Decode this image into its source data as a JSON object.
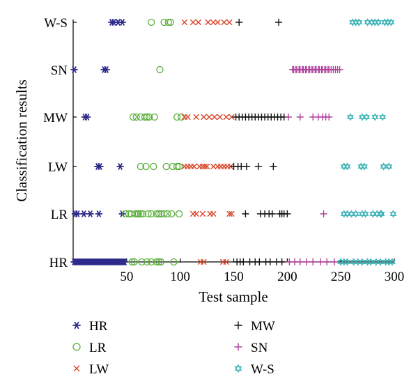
{
  "chart_data": {
    "type": "scatter",
    "xlabel": "Test sample",
    "ylabel": "Classification results",
    "xlim": [
      0,
      300
    ],
    "x_ticks": [
      "50",
      "100",
      "150",
      "200",
      "250",
      "300"
    ],
    "x_tick_values": [
      50,
      100,
      150,
      200,
      250,
      300
    ],
    "categories": [
      "HR",
      "LR",
      "LW",
      "MW",
      "SN",
      "W-S"
    ],
    "legend_position": "bottom",
    "grid": false,
    "series": [
      {
        "name": "HR",
        "color": "#2e2a8c",
        "marker": "asterisk",
        "points": [
          [
            1,
            "HR"
          ],
          [
            2,
            "HR"
          ],
          [
            3,
            "HR"
          ],
          [
            4,
            "HR"
          ],
          [
            5,
            "HR"
          ],
          [
            6,
            "HR"
          ],
          [
            7,
            "HR"
          ],
          [
            8,
            "HR"
          ],
          [
            9,
            "HR"
          ],
          [
            10,
            "HR"
          ],
          [
            11,
            "HR"
          ],
          [
            12,
            "HR"
          ],
          [
            13,
            "HR"
          ],
          [
            14,
            "HR"
          ],
          [
            15,
            "HR"
          ],
          [
            16,
            "HR"
          ],
          [
            17,
            "HR"
          ],
          [
            18,
            "HR"
          ],
          [
            19,
            "HR"
          ],
          [
            20,
            "HR"
          ],
          [
            21,
            "HR"
          ],
          [
            22,
            "HR"
          ],
          [
            23,
            "HR"
          ],
          [
            24,
            "HR"
          ],
          [
            25,
            "HR"
          ],
          [
            26,
            "HR"
          ],
          [
            27,
            "HR"
          ],
          [
            28,
            "HR"
          ],
          [
            29,
            "HR"
          ],
          [
            30,
            "HR"
          ],
          [
            31,
            "HR"
          ],
          [
            32,
            "HR"
          ],
          [
            33,
            "HR"
          ],
          [
            34,
            "HR"
          ],
          [
            35,
            "HR"
          ],
          [
            36,
            "HR"
          ],
          [
            37,
            "HR"
          ],
          [
            38,
            "HR"
          ],
          [
            39,
            "HR"
          ],
          [
            40,
            "HR"
          ],
          [
            41,
            "HR"
          ],
          [
            42,
            "HR"
          ],
          [
            43,
            "HR"
          ],
          [
            44,
            "HR"
          ],
          [
            45,
            "HR"
          ],
          [
            46,
            "HR"
          ],
          [
            47,
            "HR"
          ],
          [
            48,
            "HR"
          ],
          [
            2,
            "LR"
          ],
          [
            4,
            "LR"
          ],
          [
            10,
            "LR"
          ],
          [
            16,
            "LR"
          ],
          [
            24,
            "LR"
          ],
          [
            46,
            "LR"
          ],
          [
            23,
            "LW"
          ],
          [
            25,
            "LW"
          ],
          [
            44,
            "LW"
          ],
          [
            11,
            "MW"
          ],
          [
            13,
            "MW"
          ],
          [
            1,
            "SN"
          ],
          [
            29,
            "SN"
          ],
          [
            31,
            "SN"
          ],
          [
            36,
            "W-S"
          ],
          [
            38,
            "W-S"
          ],
          [
            42,
            "W-S"
          ],
          [
            46,
            "W-S"
          ]
        ]
      },
      {
        "name": "LR",
        "color": "#5aae3c",
        "marker": "circle",
        "points": [
          [
            55,
            "HR"
          ],
          [
            57,
            "HR"
          ],
          [
            64,
            "HR"
          ],
          [
            69,
            "HR"
          ],
          [
            73,
            "HR"
          ],
          [
            78,
            "HR"
          ],
          [
            80,
            "HR"
          ],
          [
            82,
            "HR"
          ],
          [
            94,
            "HR"
          ],
          [
            49,
            "LR"
          ],
          [
            52,
            "LR"
          ],
          [
            54,
            "LR"
          ],
          [
            58,
            "LR"
          ],
          [
            60,
            "LR"
          ],
          [
            61,
            "LR"
          ],
          [
            63,
            "LR"
          ],
          [
            65,
            "LR"
          ],
          [
            70,
            "LR"
          ],
          [
            73,
            "LR"
          ],
          [
            78,
            "LR"
          ],
          [
            80,
            "LR"
          ],
          [
            82,
            "LR"
          ],
          [
            85,
            "LR"
          ],
          [
            88,
            "LR"
          ],
          [
            92,
            "LR"
          ],
          [
            99,
            "LR"
          ],
          [
            63,
            "LW"
          ],
          [
            68,
            "LW"
          ],
          [
            75,
            "LW"
          ],
          [
            87,
            "LW"
          ],
          [
            93,
            "LW"
          ],
          [
            97,
            "LW"
          ],
          [
            99,
            "LW"
          ],
          [
            56,
            "MW"
          ],
          [
            59,
            "MW"
          ],
          [
            63,
            "MW"
          ],
          [
            67,
            "MW"
          ],
          [
            69,
            "MW"
          ],
          [
            71,
            "MW"
          ],
          [
            76,
            "MW"
          ],
          [
            97,
            "MW"
          ],
          [
            101,
            "MW"
          ],
          [
            81,
            "SN"
          ],
          [
            73,
            "W-S"
          ],
          [
            85,
            "W-S"
          ],
          [
            89,
            "W-S"
          ],
          [
            91,
            "W-S"
          ]
        ]
      },
      {
        "name": "LW",
        "color": "#d9472b",
        "marker": "x",
        "points": [
          [
            119,
            "HR"
          ],
          [
            122,
            "HR"
          ],
          [
            140,
            "HR"
          ],
          [
            143,
            "HR"
          ],
          [
            112,
            "LR"
          ],
          [
            115,
            "LR"
          ],
          [
            121,
            "LR"
          ],
          [
            128,
            "LR"
          ],
          [
            131,
            "LR"
          ],
          [
            146,
            "LR"
          ],
          [
            148,
            "LR"
          ],
          [
            104,
            "LW"
          ],
          [
            107,
            "LW"
          ],
          [
            110,
            "LW"
          ],
          [
            113,
            "LW"
          ],
          [
            118,
            "LW"
          ],
          [
            121,
            "LW"
          ],
          [
            123,
            "LW"
          ],
          [
            125,
            "LW"
          ],
          [
            131,
            "LW"
          ],
          [
            135,
            "LW"
          ],
          [
            138,
            "LW"
          ],
          [
            141,
            "LW"
          ],
          [
            144,
            "LW"
          ],
          [
            147,
            "LW"
          ],
          [
            104,
            "MW"
          ],
          [
            107,
            "MW"
          ],
          [
            115,
            "MW"
          ],
          [
            122,
            "MW"
          ],
          [
            127,
            "MW"
          ],
          [
            132,
            "MW"
          ],
          [
            137,
            "MW"
          ],
          [
            143,
            "MW"
          ],
          [
            148,
            "MW"
          ],
          [
            104,
            "W-S"
          ],
          [
            112,
            "W-S"
          ],
          [
            117,
            "W-S"
          ],
          [
            126,
            "W-S"
          ],
          [
            131,
            "W-S"
          ],
          [
            135,
            "W-S"
          ],
          [
            141,
            "W-S"
          ],
          [
            146,
            "W-S"
          ]
        ]
      },
      {
        "name": "MW",
        "color": "#111111",
        "marker": "plus",
        "points": [
          [
            153,
            "HR"
          ],
          [
            156,
            "HR"
          ],
          [
            159,
            "HR"
          ],
          [
            165,
            "HR"
          ],
          [
            170,
            "HR"
          ],
          [
            174,
            "HR"
          ],
          [
            180,
            "HR"
          ],
          [
            184,
            "HR"
          ],
          [
            190,
            "HR"
          ],
          [
            195,
            "HR"
          ],
          [
            161,
            "LR"
          ],
          [
            175,
            "LR"
          ],
          [
            179,
            "LR"
          ],
          [
            183,
            "LR"
          ],
          [
            186,
            "LR"
          ],
          [
            193,
            "LR"
          ],
          [
            195,
            "LR"
          ],
          [
            197,
            "LR"
          ],
          [
            200,
            "LR"
          ],
          [
            150,
            "LW"
          ],
          [
            154,
            "LW"
          ],
          [
            157,
            "LW"
          ],
          [
            162,
            "LW"
          ],
          [
            173,
            "LW"
          ],
          [
            187,
            "LW"
          ],
          [
            152,
            "MW"
          ],
          [
            155,
            "MW"
          ],
          [
            158,
            "MW"
          ],
          [
            161,
            "MW"
          ],
          [
            164,
            "MW"
          ],
          [
            167,
            "MW"
          ],
          [
            170,
            "MW"
          ],
          [
            173,
            "MW"
          ],
          [
            176,
            "MW"
          ],
          [
            179,
            "MW"
          ],
          [
            182,
            "MW"
          ],
          [
            185,
            "MW"
          ],
          [
            188,
            "MW"
          ],
          [
            191,
            "MW"
          ],
          [
            194,
            "MW"
          ],
          [
            197,
            "MW"
          ],
          [
            155,
            "W-S"
          ],
          [
            192,
            "W-S"
          ]
        ]
      },
      {
        "name": "SN",
        "color": "#b0409c",
        "marker": "plus",
        "points": [
          [
            202,
            "HR"
          ],
          [
            207,
            "HR"
          ],
          [
            212,
            "HR"
          ],
          [
            218,
            "HR"
          ],
          [
            224,
            "HR"
          ],
          [
            231,
            "HR"
          ],
          [
            237,
            "HR"
          ],
          [
            244,
            "HR"
          ],
          [
            234,
            "LR"
          ],
          [
            201,
            "MW"
          ],
          [
            212,
            "MW"
          ],
          [
            224,
            "MW"
          ],
          [
            229,
            "MW"
          ],
          [
            233,
            "MW"
          ],
          [
            236,
            "MW"
          ],
          [
            239,
            "MW"
          ],
          [
            205,
            "SN"
          ],
          [
            206,
            "SN"
          ],
          [
            208,
            "SN"
          ],
          [
            209,
            "SN"
          ],
          [
            211,
            "SN"
          ],
          [
            212,
            "SN"
          ],
          [
            214,
            "SN"
          ],
          [
            215,
            "SN"
          ],
          [
            217,
            "SN"
          ],
          [
            218,
            "SN"
          ],
          [
            220,
            "SN"
          ],
          [
            221,
            "SN"
          ],
          [
            223,
            "SN"
          ],
          [
            224,
            "SN"
          ],
          [
            226,
            "SN"
          ],
          [
            227,
            "SN"
          ],
          [
            229,
            "SN"
          ],
          [
            230,
            "SN"
          ],
          [
            232,
            "SN"
          ],
          [
            233,
            "SN"
          ],
          [
            235,
            "SN"
          ],
          [
            236,
            "SN"
          ],
          [
            238,
            "SN"
          ],
          [
            239,
            "SN"
          ],
          [
            241,
            "SN"
          ],
          [
            243,
            "SN"
          ],
          [
            245,
            "SN"
          ],
          [
            247,
            "SN"
          ],
          [
            249,
            "SN"
          ]
        ]
      },
      {
        "name": "W-S",
        "color": "#3fb4b8",
        "marker": "star",
        "points": [
          [
            250,
            "HR"
          ],
          [
            253,
            "HR"
          ],
          [
            256,
            "HR"
          ],
          [
            262,
            "HR"
          ],
          [
            266,
            "HR"
          ],
          [
            270,
            "HR"
          ],
          [
            275,
            "HR"
          ],
          [
            278,
            "HR"
          ],
          [
            283,
            "HR"
          ],
          [
            287,
            "HR"
          ],
          [
            292,
            "HR"
          ],
          [
            295,
            "HR"
          ],
          [
            298,
            "HR"
          ],
          [
            253,
            "LR"
          ],
          [
            256,
            "LR"
          ],
          [
            260,
            "LR"
          ],
          [
            264,
            "LR"
          ],
          [
            270,
            "LR"
          ],
          [
            273,
            "LR"
          ],
          [
            280,
            "LR"
          ],
          [
            284,
            "LR"
          ],
          [
            287,
            "LR"
          ],
          [
            288,
            "LR"
          ],
          [
            299,
            "LR"
          ],
          [
            253,
            "LW"
          ],
          [
            256,
            "LW"
          ],
          [
            269,
            "LW"
          ],
          [
            272,
            "LW"
          ],
          [
            290,
            "LW"
          ],
          [
            295,
            "LW"
          ],
          [
            259,
            "MW"
          ],
          [
            270,
            "MW"
          ],
          [
            274,
            "MW"
          ],
          [
            282,
            "MW"
          ],
          [
            289,
            "MW"
          ],
          [
            261,
            "W-S"
          ],
          [
            264,
            "W-S"
          ],
          [
            267,
            "W-S"
          ],
          [
            275,
            "W-S"
          ],
          [
            279,
            "W-S"
          ],
          [
            282,
            "W-S"
          ],
          [
            285,
            "W-S"
          ],
          [
            291,
            "W-S"
          ],
          [
            294,
            "W-S"
          ],
          [
            297,
            "W-S"
          ]
        ]
      }
    ]
  }
}
